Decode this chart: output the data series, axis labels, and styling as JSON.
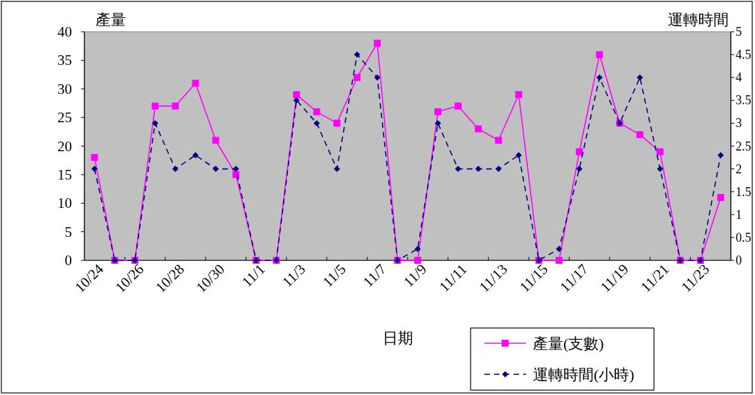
{
  "chart_data": {
    "type": "line",
    "xlabel": "日期",
    "ylabel": "產量",
    "y2label": "運轉時間",
    "categories": [
      "10/24",
      null,
      "10/26",
      null,
      "10/28",
      null,
      "10/30",
      null,
      "11/1",
      null,
      "11/3",
      null,
      "11/5",
      null,
      "11/7",
      null,
      "11/9",
      null,
      "11/11",
      null,
      "11/13",
      null,
      "11/15",
      null,
      "11/17",
      null,
      "11/19",
      null,
      "11/21",
      null,
      "11/23",
      null
    ],
    "series": [
      {
        "name": "產量(支數)",
        "color": "#ff00ff",
        "marker": "square",
        "line_style": "solid",
        "values": [
          18,
          0,
          0,
          27,
          27,
          31,
          21,
          15,
          0,
          0,
          29,
          26,
          24,
          32,
          38,
          0,
          0,
          26,
          27,
          23,
          21,
          29,
          0,
          0,
          19,
          36,
          24,
          22,
          19,
          0,
          0,
          11
        ]
      },
      {
        "name": "運轉時間(小時)",
        "color": "#000080",
        "marker": "diamond",
        "line_style": "dashed",
        "axis": "y2",
        "values": [
          2,
          0,
          0,
          3,
          2,
          2.3,
          2,
          2,
          0,
          0,
          3.5,
          3,
          2,
          4.5,
          4,
          0,
          0.25,
          3,
          2,
          2,
          2,
          2.3,
          0,
          0.25,
          2,
          4,
          3,
          4,
          2,
          0,
          0,
          2.3
        ]
      }
    ],
    "ylim": [
      0,
      40
    ],
    "yticks": [
      0,
      5,
      10,
      15,
      20,
      25,
      30,
      35,
      40
    ],
    "y2lim": [
      0,
      5
    ],
    "y2ticks": [
      0,
      0.5,
      1,
      1.5,
      2,
      2.5,
      3,
      3.5,
      4,
      4.5,
      5
    ],
    "grid": false,
    "legend": "bottom"
  }
}
